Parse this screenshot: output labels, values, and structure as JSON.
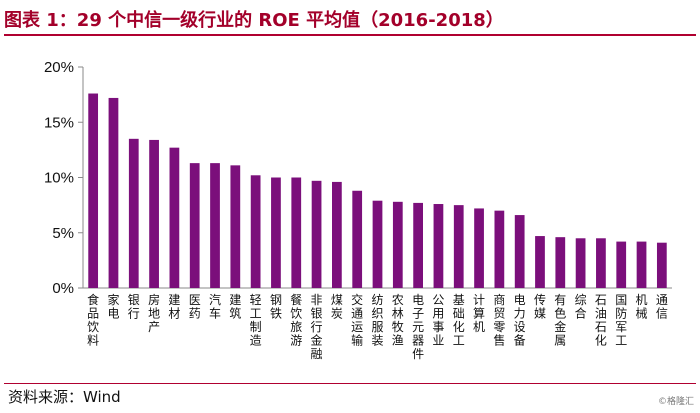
{
  "header": {
    "title": "图表 1：29 个中信一级行业的 ROE 平均值（2016-2018）"
  },
  "footer": {
    "source": "资料来源：Wind",
    "watermark": "©格隆汇"
  },
  "colors": {
    "bar": "#7b0f7b",
    "title": "#a3002a"
  },
  "chart_data": {
    "type": "bar",
    "title": "29 个中信一级行业的 ROE 平均值（2016-2018）",
    "xlabel": "",
    "ylabel": "",
    "ylim": [
      0,
      20
    ],
    "yticks": [
      "0%",
      "5%",
      "10%",
      "15%",
      "20%"
    ],
    "grid": false,
    "categories": [
      "食品饮料",
      "家电",
      "银行",
      "房地产",
      "建材",
      "医药",
      "汽车",
      "建筑",
      "轻工制造",
      "钢铁",
      "餐饮旅游",
      "非银行金融",
      "煤炭",
      "交通运输",
      "纺织服装",
      "农林牧渔",
      "电子元器件",
      "公用事业",
      "基础化工",
      "计算机",
      "商贸零售",
      "电力设备",
      "传媒",
      "有色金属",
      "综合",
      "石油石化",
      "国防军工",
      "机械",
      "通信"
    ],
    "values": [
      17.6,
      17.2,
      13.5,
      13.4,
      12.7,
      11.3,
      11.3,
      11.1,
      10.2,
      10.0,
      10.0,
      9.7,
      9.6,
      8.8,
      7.9,
      7.8,
      7.7,
      7.6,
      7.5,
      7.2,
      7.0,
      6.6,
      4.7,
      4.6,
      4.5,
      4.5,
      4.2,
      4.2,
      4.1
    ]
  }
}
